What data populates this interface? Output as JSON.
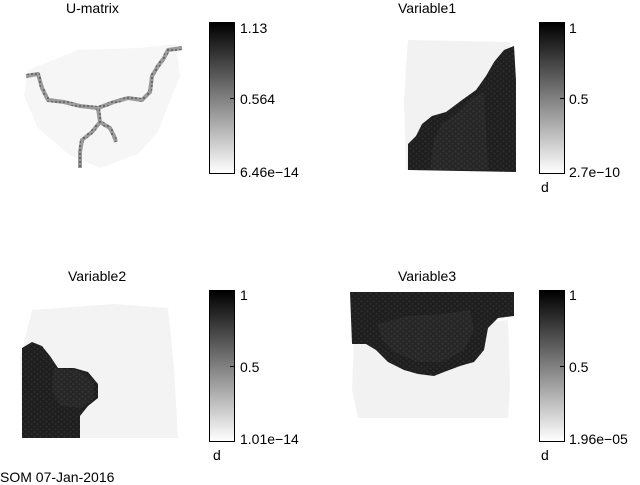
{
  "footer": "SOM 07-Jan-2016",
  "chart_data": [
    {
      "type": "heatmap",
      "title": "U-matrix",
      "colormap": "gray",
      "colorbar": {
        "max_label": "1.13",
        "mid_label": "0.564",
        "min_label": "6.46e−14",
        "unit": ""
      }
    },
    {
      "type": "heatmap",
      "title": "Variable1",
      "colormap": "gray",
      "colorbar": {
        "max_label": "1",
        "mid_label": "0.5",
        "min_label": "2.7e−10",
        "unit": "d"
      }
    },
    {
      "type": "heatmap",
      "title": "Variable2",
      "colormap": "gray",
      "colorbar": {
        "max_label": "1",
        "mid_label": "0.5",
        "min_label": "1.01e−14",
        "unit": "d"
      }
    },
    {
      "type": "heatmap",
      "title": "Variable3",
      "colormap": "gray",
      "colorbar": {
        "max_label": "1",
        "mid_label": "0.5",
        "min_label": "1.96e−05",
        "unit": "d"
      }
    }
  ]
}
